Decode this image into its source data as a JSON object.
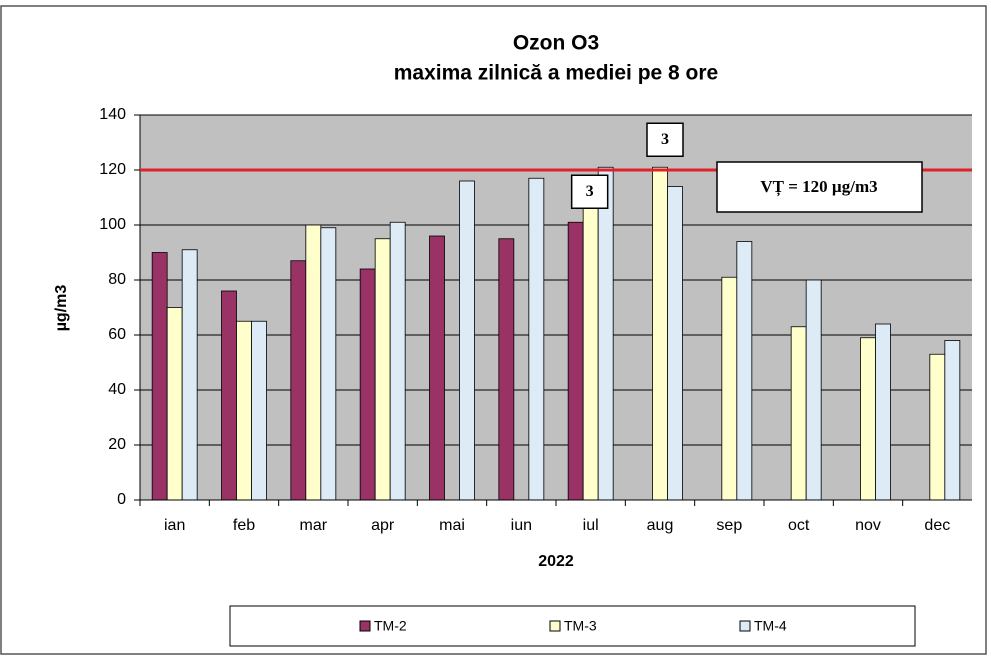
{
  "chart_data": {
    "type": "bar",
    "title": "Ozon O3",
    "subtitle": "maxima zilnică a mediei pe 8 ore",
    "y_label": "µg/m3",
    "x_label": "2022",
    "categories": [
      "ian",
      "feb",
      "mar",
      "apr",
      "mai",
      "iun",
      "iul",
      "aug",
      "sep",
      "oct",
      "nov",
      "dec"
    ],
    "series": [
      {
        "name": "TM-2",
        "color": "#993366",
        "values": [
          90,
          76,
          87,
          84,
          96,
          95,
          101,
          null,
          null,
          null,
          null,
          null
        ]
      },
      {
        "name": "TM-3",
        "color": "#ffffcc",
        "values": [
          70,
          65,
          100,
          95,
          null,
          null,
          109,
          121,
          81,
          63,
          59,
          53
        ]
      },
      {
        "name": "TM-4",
        "color": "#dcebf5",
        "values": [
          91,
          65,
          99,
          101,
          116,
          117,
          121,
          114,
          94,
          80,
          64,
          58
        ]
      }
    ],
    "ylim": [
      0,
      140
    ],
    "yticks": [
      0,
      20,
      40,
      60,
      80,
      100,
      120,
      140
    ],
    "grid": true,
    "reference_line": {
      "value": 120,
      "label": "VȚ = 120 µg/m3",
      "color": "#e0202a"
    },
    "annotations": [
      {
        "text": "3",
        "category": "iul",
        "series": "TM-4"
      },
      {
        "text": "3",
        "category": "aug",
        "series": "TM-3"
      }
    ]
  }
}
